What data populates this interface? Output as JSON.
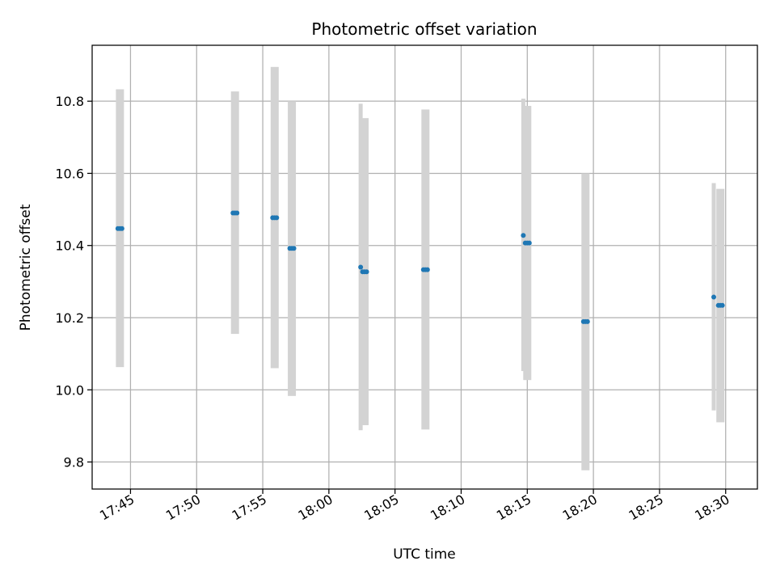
{
  "chart_data": {
    "type": "scatter",
    "title": "Photometric offset variation",
    "xlabel": "UTC time",
    "ylabel": "Photometric offset",
    "x_ticks": [
      "17:45",
      "17:50",
      "17:55",
      "18:00",
      "18:05",
      "18:10",
      "18:15",
      "18:20",
      "18:25",
      "18:30"
    ],
    "y_ticks": [
      "9.8",
      "10.0",
      "10.2",
      "10.4",
      "10.6",
      "10.8"
    ],
    "xlim": [
      "17:42:06",
      "18:32:24"
    ],
    "ylim": [
      9.725,
      10.955
    ],
    "grid": true,
    "colors": {
      "points": "#1f77b4",
      "error_bars": "#d3d3d3",
      "grid": "#b0b0b0"
    },
    "groups": [
      {
        "time": "17:44:12",
        "y": 10.447,
        "ylow": 10.063,
        "yhigh": 10.833,
        "n": 3
      },
      {
        "time": "17:52:54",
        "y": 10.49,
        "ylow": 10.155,
        "yhigh": 10.827,
        "n": 3
      },
      {
        "time": "17:55:54",
        "y": 10.477,
        "ylow": 10.06,
        "yhigh": 10.895,
        "n": 3
      },
      {
        "time": "17:57:12",
        "y": 10.392,
        "ylow": 9.983,
        "yhigh": 10.8,
        "n": 3
      },
      {
        "time": "18:02:24",
        "y": 10.34,
        "ylow": 9.888,
        "yhigh": 10.793,
        "n": 1
      },
      {
        "time": "18:02:42",
        "y": 10.327,
        "ylow": 9.902,
        "yhigh": 10.753,
        "n": 3
      },
      {
        "time": "18:07:18",
        "y": 10.333,
        "ylow": 9.89,
        "yhigh": 10.777,
        "n": 3
      },
      {
        "time": "18:14:42",
        "y": 10.428,
        "ylow": 10.052,
        "yhigh": 10.807,
        "n": 1
      },
      {
        "time": "18:15:00",
        "y": 10.407,
        "ylow": 10.027,
        "yhigh": 10.787,
        "n": 3
      },
      {
        "time": "18:19:24",
        "y": 10.189,
        "ylow": 9.777,
        "yhigh": 10.6,
        "n": 3
      },
      {
        "time": "18:29:06",
        "y": 10.257,
        "ylow": 9.943,
        "yhigh": 10.573,
        "n": 1
      },
      {
        "time": "18:29:36",
        "y": 10.234,
        "ylow": 9.91,
        "yhigh": 10.557,
        "n": 3
      }
    ]
  }
}
